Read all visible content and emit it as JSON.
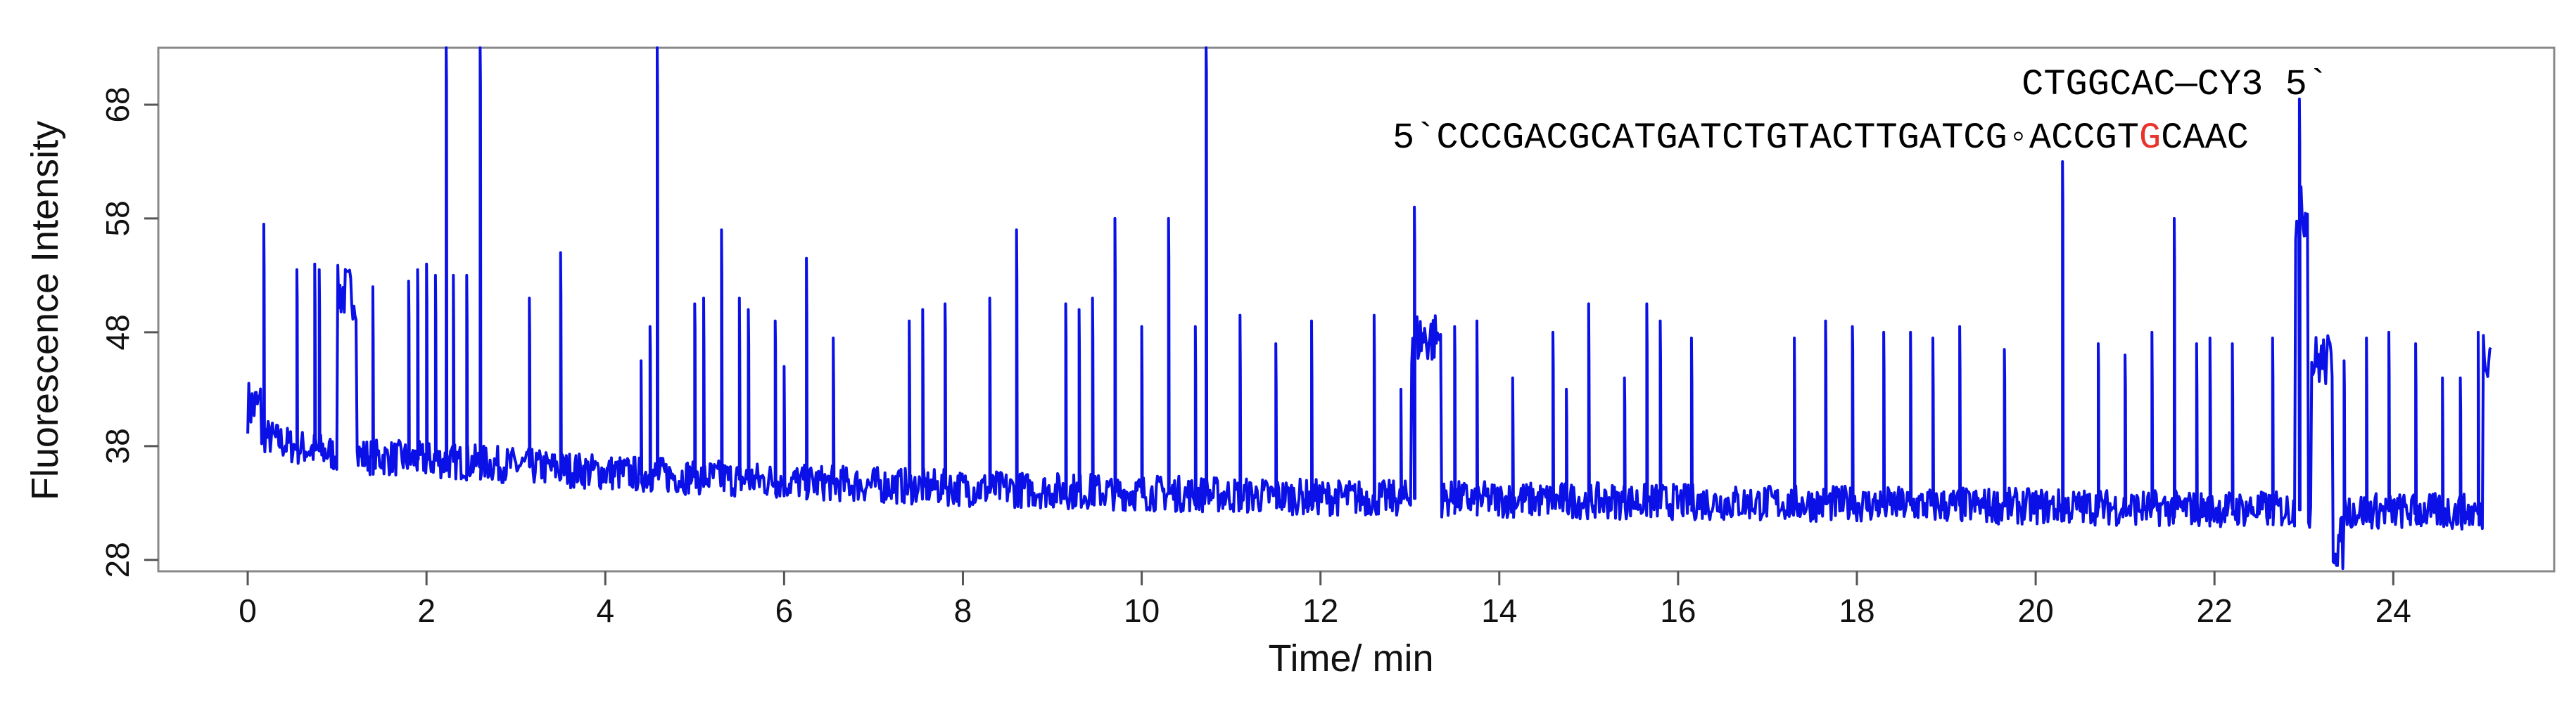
{
  "chart_data": {
    "type": "line",
    "title": "",
    "xlabel": "Time/ min",
    "ylabel": "Fluorescence Intensity",
    "xlim": [
      -1.0,
      25.8
    ],
    "ylim": [
      27,
      73
    ],
    "xticks": [
      0,
      2,
      4,
      6,
      8,
      10,
      12,
      14,
      16,
      18,
      20,
      22,
      24
    ],
    "yticks": [
      28,
      38,
      48,
      58,
      68
    ],
    "grid": false,
    "legend": "none",
    "line_color": "#0a10e6",
    "annotations": {
      "top_strand": "CTGGCAC—CY3 5`",
      "bottom_strand_prefix": "5`CCCGACGCATGATCTGTACTTGATCG◦ACCGT",
      "bottom_strand_highlight": "G",
      "bottom_strand_suffix": "CAAC",
      "highlight_color": "#e8322a"
    },
    "baseline": [
      [
        0.0,
        39.5
      ],
      [
        0.5,
        38.0
      ],
      [
        1.0,
        37.3
      ],
      [
        1.5,
        37.0
      ],
      [
        2.0,
        36.8
      ],
      [
        3.0,
        36.3
      ],
      [
        4.0,
        35.7
      ],
      [
        5.0,
        35.3
      ],
      [
        6.0,
        34.9
      ],
      [
        7.0,
        34.6
      ],
      [
        8.0,
        34.3
      ],
      [
        9.0,
        34.1
      ],
      [
        10.0,
        33.9
      ],
      [
        11.0,
        33.7
      ],
      [
        12.0,
        33.5
      ],
      [
        13.0,
        33.4
      ],
      [
        14.0,
        33.3
      ],
      [
        15.0,
        33.2
      ],
      [
        16.0,
        33.1
      ],
      [
        17.0,
        33.0
      ],
      [
        18.0,
        32.9
      ],
      [
        19.0,
        32.8
      ],
      [
        20.0,
        32.7
      ],
      [
        21.0,
        32.6
      ],
      [
        22.0,
        32.5
      ],
      [
        23.0,
        32.4
      ],
      [
        24.0,
        32.3
      ],
      [
        25.1,
        32.2
      ]
    ],
    "spikes": [
      [
        0.18,
        57.5
      ],
      [
        0.55,
        53.5
      ],
      [
        0.75,
        54.0
      ],
      [
        0.8,
        53.5
      ],
      [
        1.4,
        52.0
      ],
      [
        1.8,
        52.5
      ],
      [
        1.9,
        53.5
      ],
      [
        2.0,
        54.0
      ],
      [
        2.1,
        53.0
      ],
      [
        2.22,
        73.0
      ],
      [
        2.3,
        53.0
      ],
      [
        2.45,
        53.0
      ],
      [
        2.6,
        73.0
      ],
      [
        3.15,
        51.0
      ],
      [
        3.5,
        55.0
      ],
      [
        4.4,
        45.5
      ],
      [
        4.5,
        48.5
      ],
      [
        4.58,
        73.0
      ],
      [
        5.0,
        50.5
      ],
      [
        5.1,
        51.0
      ],
      [
        5.3,
        57.0
      ],
      [
        5.5,
        51.0
      ],
      [
        5.6,
        50.0
      ],
      [
        5.9,
        49.0
      ],
      [
        6.0,
        45.0
      ],
      [
        6.25,
        54.5
      ],
      [
        6.55,
        47.5
      ],
      [
        7.4,
        49.0
      ],
      [
        7.55,
        50.0
      ],
      [
        7.8,
        50.5
      ],
      [
        8.3,
        51.0
      ],
      [
        8.6,
        57.0
      ],
      [
        9.15,
        50.5
      ],
      [
        9.3,
        50.0
      ],
      [
        9.45,
        51.0
      ],
      [
        9.7,
        58.0
      ],
      [
        10.0,
        48.5
      ],
      [
        10.3,
        58.0
      ],
      [
        10.6,
        48.5
      ],
      [
        10.72,
        73.0
      ],
      [
        11.1,
        49.5
      ],
      [
        11.5,
        47.0
      ],
      [
        11.9,
        49.0
      ],
      [
        12.6,
        49.5
      ],
      [
        12.9,
        43.0
      ],
      [
        13.05,
        59.0
      ],
      [
        13.5,
        48.5
      ],
      [
        13.75,
        49.0
      ],
      [
        14.15,
        44.0
      ],
      [
        14.6,
        48.0
      ],
      [
        14.75,
        43.0
      ],
      [
        15.0,
        50.5
      ],
      [
        15.4,
        44.0
      ],
      [
        15.65,
        50.5
      ],
      [
        15.8,
        49.0
      ],
      [
        16.15,
        47.5
      ],
      [
        17.3,
        47.5
      ],
      [
        17.65,
        49.0
      ],
      [
        17.95,
        48.5
      ],
      [
        18.3,
        48.0
      ],
      [
        18.6,
        48.0
      ],
      [
        18.85,
        47.5
      ],
      [
        19.15,
        48.5
      ],
      [
        19.65,
        46.5
      ],
      [
        20.3,
        63.0
      ],
      [
        20.7,
        47.0
      ],
      [
        21.0,
        46.0
      ],
      [
        21.3,
        48.0
      ],
      [
        21.55,
        58.0
      ],
      [
        21.8,
        47.0
      ],
      [
        21.95,
        47.5
      ],
      [
        22.2,
        47.0
      ],
      [
        22.65,
        47.5
      ],
      [
        22.95,
        68.5
      ],
      [
        23.45,
        45.5
      ],
      [
        23.7,
        47.5
      ],
      [
        23.95,
        48.0
      ],
      [
        24.25,
        47.0
      ],
      [
        24.55,
        44.0
      ],
      [
        24.75,
        44.0
      ],
      [
        24.95,
        48.0
      ]
    ],
    "plateaus": [
      [
        0.0,
        0.15,
        41.5
      ],
      [
        1.0,
        1.22,
        51.5
      ],
      [
        13.02,
        13.35,
        47.5
      ],
      [
        22.9,
        23.05,
        58.5
      ],
      [
        23.08,
        23.32,
        45.5
      ],
      [
        23.32,
        23.45,
        29.5
      ],
      [
        25.0,
        25.12,
        46.5
      ]
    ]
  }
}
